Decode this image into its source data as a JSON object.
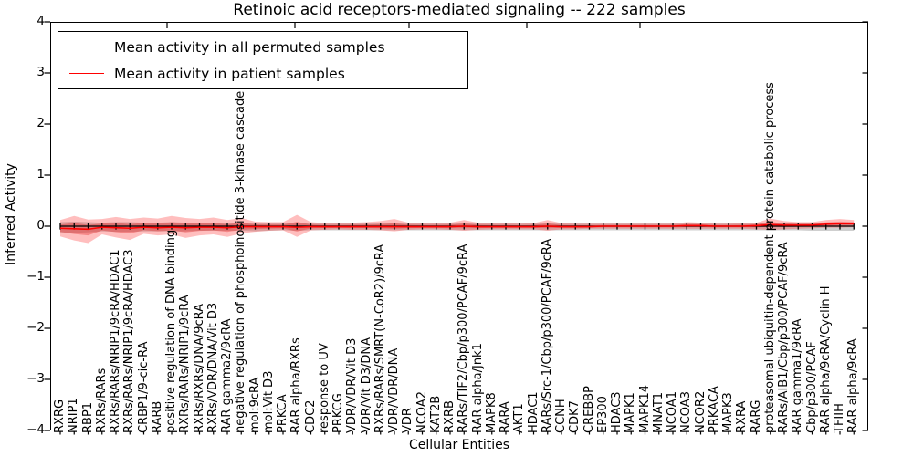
{
  "chart_data": {
    "type": "area",
    "title": "Retinoic acid receptors-mediated signaling -- 222 samples",
    "xlabel": "Cellular Entities",
    "ylabel": "Inferred Activity",
    "ylim": [
      -4,
      4
    ],
    "yticks": [
      4,
      3,
      2,
      1,
      0,
      -1,
      -2,
      -3,
      -4
    ],
    "grid": false,
    "legend": {
      "position": "upper left",
      "entries": [
        {
          "label": "Mean activity in all permuted samples",
          "color": "#000000"
        },
        {
          "label": "Mean activity in patient samples",
          "color": "#ff0000"
        }
      ]
    },
    "colors": {
      "permuted_line": "#000000",
      "patient_line": "#ff0000",
      "permuted_band": "rgba(128,128,128,0.38)",
      "patient_band": "rgba(255,40,40,0.30)",
      "patient_band_inner": "rgba(225,20,20,0.32)",
      "axis": "#000000",
      "background": "#ffffff"
    },
    "categories": [
      "RXRG",
      "NRIP1",
      "RBP1",
      "RXRs/RARs",
      "RXRs/RARs/NRIP1/9cRA/HDAC1",
      "RXRs/RARs/NRIP1/9cRA/HDAC3",
      "CRBP1/9-cic-RA",
      "RARB",
      "positive regulation of DNA binding",
      "RXRs/RARs/NRIP1/9cRA",
      "RXRs/RXRs/DNA/9cRA",
      "RXRs/VDR/DNA/Vit D3",
      "RAR gamma2/9cRA",
      "negative regulation of phosphoinositide 3-kinase cascade",
      "mol:9cRA",
      "mol:Vit D3",
      "PRKCA",
      "RAR alpha/RXRs",
      "CDC2",
      "response to UV",
      "PRKCG",
      "VDR/VDR/Vit D3",
      "VDR/Vit D3/DNA",
      "RXRs/RARs/SMRT(N-CoR2)/9cRA",
      "VDR/VDR/DNA",
      "VDR",
      "NCOA2",
      "KAT2B",
      "RXRB",
      "RARs/TIF2/Cbp/p300/PCAF/9cRA",
      "RAR alpha/Jnk1",
      "MAPK8",
      "RARA",
      "AKT1",
      "HDAC1",
      "RARs/Src-1/Cbp/p300/PCAF/9cRA",
      "CCNH",
      "CDK7",
      "CREBBP",
      "EP300",
      "HDAC3",
      "MAPK1",
      "MAPK14",
      "MNAT1",
      "NCOA1",
      "NCOA3",
      "NCOR2",
      "PRKACA",
      "MAPK3",
      "RXRA",
      "RARG",
      "proteasomal ubiquitin-dependent protein catabolic process",
      "RARs/AIB1/Cbp/p300/PCAF/9cRA",
      "RAR gamma1/9cRA",
      "Cbp/p300/PCAF",
      "RAR alpha/9cRA/Cyclin H",
      "TFIIH",
      "RAR alpha/9cRA"
    ],
    "series": [
      {
        "name": "Mean activity in all permuted samples",
        "kind": "line",
        "values": [
          0,
          0,
          0,
          0,
          0,
          0,
          0,
          0,
          0,
          0,
          0,
          0,
          0,
          0,
          0,
          0,
          0,
          0,
          0,
          0,
          0,
          0,
          0,
          0,
          0,
          0,
          0,
          0,
          0,
          0,
          0,
          0,
          0,
          0,
          0,
          0,
          0,
          0,
          0,
          0,
          0,
          0,
          0,
          0,
          0,
          0,
          0,
          0,
          0,
          0,
          0,
          0,
          0,
          0,
          0,
          0,
          0,
          0
        ]
      },
      {
        "name": "Permuted samples band (mean ± std)",
        "kind": "band",
        "upper": [
          0.08,
          0.09,
          0.08,
          0.07,
          0.08,
          0.08,
          0.07,
          0.07,
          0.08,
          0.07,
          0.07,
          0.07,
          0.07,
          0.07,
          0.07,
          0.06,
          0.06,
          0.07,
          0.06,
          0.06,
          0.06,
          0.06,
          0.06,
          0.06,
          0.06,
          0.06,
          0.06,
          0.06,
          0.06,
          0.06,
          0.06,
          0.06,
          0.06,
          0.06,
          0.06,
          0.06,
          0.06,
          0.06,
          0.06,
          0.06,
          0.06,
          0.06,
          0.06,
          0.06,
          0.06,
          0.06,
          0.06,
          0.06,
          0.06,
          0.06,
          0.06,
          0.07,
          0.06,
          0.06,
          0.06,
          0.06,
          0.07,
          0.07
        ],
        "lower": [
          -0.12,
          -0.13,
          -0.12,
          -0.1,
          -0.11,
          -0.11,
          -0.1,
          -0.1,
          -0.1,
          -0.1,
          -0.09,
          -0.09,
          -0.09,
          -0.09,
          -0.1,
          -0.09,
          -0.08,
          -0.09,
          -0.08,
          -0.08,
          -0.08,
          -0.08,
          -0.08,
          -0.08,
          -0.08,
          -0.08,
          -0.08,
          -0.08,
          -0.08,
          -0.08,
          -0.08,
          -0.08,
          -0.08,
          -0.08,
          -0.08,
          -0.08,
          -0.08,
          -0.08,
          -0.08,
          -0.08,
          -0.08,
          -0.08,
          -0.08,
          -0.08,
          -0.08,
          -0.08,
          -0.08,
          -0.08,
          -0.08,
          -0.08,
          -0.08,
          -0.08,
          -0.08,
          -0.08,
          -0.09,
          -0.09,
          -0.09,
          -0.09
        ]
      },
      {
        "name": "Mean activity in patient samples",
        "kind": "line",
        "values": [
          -0.04,
          -0.05,
          -0.06,
          -0.02,
          -0.03,
          -0.04,
          -0.02,
          -0.03,
          -0.02,
          -0.03,
          -0.02,
          -0.02,
          -0.03,
          -0.01,
          -0.01,
          -0.01,
          -0.01,
          -0.02,
          -0.01,
          -0.01,
          -0.01,
          -0.01,
          -0.01,
          -0.01,
          -0.01,
          -0.01,
          -0.01,
          -0.01,
          -0.01,
          0,
          -0.01,
          -0.01,
          -0.01,
          -0.01,
          -0.01,
          0,
          -0.01,
          -0.01,
          -0.01,
          0,
          0,
          0,
          0,
          0,
          0,
          0.01,
          0.01,
          0,
          0,
          0,
          0.01,
          0.03,
          0.02,
          0.02,
          0.02,
          0.04,
          0.05,
          0.05
        ]
      },
      {
        "name": "Patient samples band (mean ± std)",
        "kind": "band",
        "upper": [
          0.12,
          0.2,
          0.13,
          0.14,
          0.18,
          0.14,
          0.17,
          0.15,
          0.2,
          0.16,
          0.14,
          0.17,
          0.12,
          0.16,
          0.09,
          0.08,
          0.08,
          0.22,
          0.08,
          0.06,
          0.06,
          0.07,
          0.08,
          0.1,
          0.14,
          0.07,
          0.06,
          0.06,
          0.07,
          0.12,
          0.07,
          0.06,
          0.06,
          0.05,
          0.06,
          0.12,
          0.06,
          0.05,
          0.05,
          0.05,
          0.05,
          0.05,
          0.05,
          0.05,
          0.05,
          0.08,
          0.07,
          0.05,
          0.05,
          0.06,
          0.07,
          0.15,
          0.1,
          0.08,
          0.08,
          0.12,
          0.14,
          0.12
        ],
        "lower": [
          -0.2,
          -0.28,
          -0.33,
          -0.16,
          -0.22,
          -0.27,
          -0.15,
          -0.18,
          -0.16,
          -0.23,
          -0.18,
          -0.16,
          -0.21,
          -0.14,
          -0.11,
          -0.09,
          -0.08,
          -0.21,
          -0.08,
          -0.07,
          -0.06,
          -0.07,
          -0.07,
          -0.08,
          -0.1,
          -0.07,
          -0.06,
          -0.06,
          -0.07,
          -0.09,
          -0.07,
          -0.06,
          -0.06,
          -0.06,
          -0.06,
          -0.09,
          -0.06,
          -0.06,
          -0.05,
          -0.05,
          -0.05,
          -0.05,
          -0.05,
          -0.05,
          -0.05,
          -0.05,
          -0.05,
          -0.05,
          -0.05,
          -0.05,
          -0.06,
          -0.07,
          -0.06,
          -0.05,
          -0.04,
          -0.03,
          -0.03,
          -0.02
        ]
      }
    ]
  }
}
